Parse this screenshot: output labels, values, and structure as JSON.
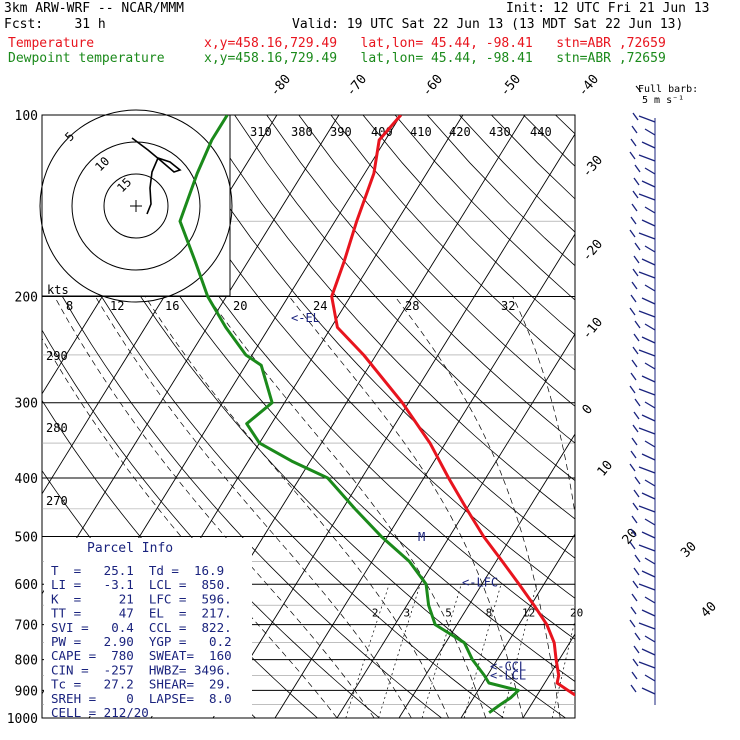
{
  "header": {
    "model": "3km ARW-WRF -- NCAR/MMM",
    "init": "Init: 12 UTC Fri 21 Jun 13",
    "fcst": "Fcst:    31 h",
    "valid": "Valid: 19 UTC Sat 22 Jun 13 (13 MDT Sat 22 Jun 13)",
    "temp_label": "Temperature",
    "dew_label": "Dewpoint temperature",
    "temp_loc": "x,y=458.16,729.49   lat,lon= 45.44, -98.41   stn=ABR ,72659",
    "dew_loc": "x,y=458.16,729.49   lat,lon= 45.44, -98.41   stn=ABR ,72659"
  },
  "chart_data": {
    "type": "line",
    "title": "3km ARW-WRF -- NCAR/MMM",
    "ylabel": "",
    "pressure_ticks": [
      "100",
      "200",
      "300",
      "400",
      "500",
      "600",
      "700",
      "800",
      "900",
      "1000"
    ],
    "isotherm_labels": [
      "-80",
      "-70",
      "-60",
      "-50",
      "-40",
      "-30",
      "-20",
      "-10",
      "0",
      "10",
      "20",
      "30",
      "40"
    ],
    "theta_e_labels": [
      "310",
      "380",
      "390",
      "400",
      "410",
      "420",
      "430",
      "440"
    ],
    "theta_labels": [
      "290",
      "280",
      "270"
    ],
    "mixing_ratio_labels": [
      "2",
      "3",
      "5",
      "8",
      "12",
      "20"
    ],
    "series": [
      {
        "name": "Temperature",
        "color": "#e8141e",
        "points": [
          {
            "p": 1000,
            "t": 36.0
          },
          {
            "p": 950,
            "t": 30.0
          },
          {
            "p": 925,
            "t": 27.0
          },
          {
            "p": 900,
            "t": 24.5
          },
          {
            "p": 875,
            "t": 22.0
          },
          {
            "p": 850,
            "t": 21.5
          },
          {
            "p": 800,
            "t": 19.5
          },
          {
            "p": 750,
            "t": 17.5
          },
          {
            "p": 700,
            "t": 14.5
          },
          {
            "p": 650,
            "t": 10.5
          },
          {
            "p": 600,
            "t": 6.0
          },
          {
            "p": 550,
            "t": 1.0
          },
          {
            "p": 500,
            "t": -4.5
          },
          {
            "p": 450,
            "t": -10.0
          },
          {
            "p": 400,
            "t": -16.0
          },
          {
            "p": 350,
            "t": -22.5
          },
          {
            "p": 300,
            "t": -31.0
          },
          {
            "p": 250,
            "t": -42.0
          },
          {
            "p": 225,
            "t": -49.0
          },
          {
            "p": 200,
            "t": -53.0
          },
          {
            "p": 175,
            "t": -54.5
          },
          {
            "p": 150,
            "t": -56.5
          },
          {
            "p": 125,
            "t": -58.5
          },
          {
            "p": 110,
            "t": -61.0
          },
          {
            "p": 100,
            "t": -60.0
          }
        ]
      },
      {
        "name": "Dewpoint temperature",
        "color": "#1b8a1b",
        "points": [
          {
            "p": 980,
            "t": 14.0
          },
          {
            "p": 950,
            "t": 15.0
          },
          {
            "p": 925,
            "t": 16.0
          },
          {
            "p": 900,
            "t": 16.5
          },
          {
            "p": 875,
            "t": 11.0
          },
          {
            "p": 850,
            "t": 9.5
          },
          {
            "p": 800,
            "t": 6.0
          },
          {
            "p": 750,
            "t": 3.0
          },
          {
            "p": 700,
            "t": -3.5
          },
          {
            "p": 650,
            "t": -6.5
          },
          {
            "p": 600,
            "t": -9.0
          },
          {
            "p": 550,
            "t": -14.0
          },
          {
            "p": 500,
            "t": -21.0
          },
          {
            "p": 450,
            "t": -28.0
          },
          {
            "p": 400,
            "t": -35.5
          },
          {
            "p": 375,
            "t": -43.0
          },
          {
            "p": 350,
            "t": -50.0
          },
          {
            "p": 325,
            "t": -54.0
          },
          {
            "p": 300,
            "t": -52.0
          },
          {
            "p": 260,
            "t": -57.5
          },
          {
            "p": 250,
            "t": -61.0
          },
          {
            "p": 225,
            "t": -67.0
          },
          {
            "p": 200,
            "t": -73.0
          },
          {
            "p": 175,
            "t": -78.5
          },
          {
            "p": 150,
            "t": -85.0
          },
          {
            "p": 125,
            "t": -87.0
          },
          {
            "p": 110,
            "t": -88.0
          },
          {
            "p": 100,
            "t": -88.0
          }
        ]
      }
    ],
    "level_markers": [
      {
        "label": "<-EL",
        "p": 217
      },
      {
        "label": "<-LFC",
        "p": 596
      },
      {
        "label": "<-CCL",
        "p": 822
      },
      {
        "label": "<-LCL",
        "p": 850
      }
    ],
    "marker_m": "M",
    "hodograph": {
      "rings": [
        "5",
        "10",
        "15"
      ],
      "kts_label": "kts",
      "speed_ticks": [
        "8",
        "12",
        "16",
        "20",
        "24",
        "28",
        "32"
      ]
    },
    "wind_barb_legend": [
      "Full barb:",
      "5 m s⁻¹"
    ]
  },
  "parcel_info": {
    "title": "Parcel Info",
    "rows": [
      "T  =   25.1  Td =  16.9",
      "LI =   -3.1  LCL =  850.",
      "K  =     21  LFC =  596.",
      "TT =     47  EL  =  217.",
      "SVI =   0.4  CCL =  822.",
      "PW =   2.90  YGP =   0.2",
      "CAPE =  780  SWEAT=  160",
      "CIN =  -257  HWBZ= 3496.",
      "Tc =   27.2  SHEAR=  29.",
      "SREH =    0  LAPSE=  8.0",
      "CELL = 212/20"
    ]
  },
  "colors": {
    "temperature": "#e8141e",
    "dewpoint": "#1b8a1b",
    "barb": "#1a237e",
    "grid": "#000000"
  }
}
